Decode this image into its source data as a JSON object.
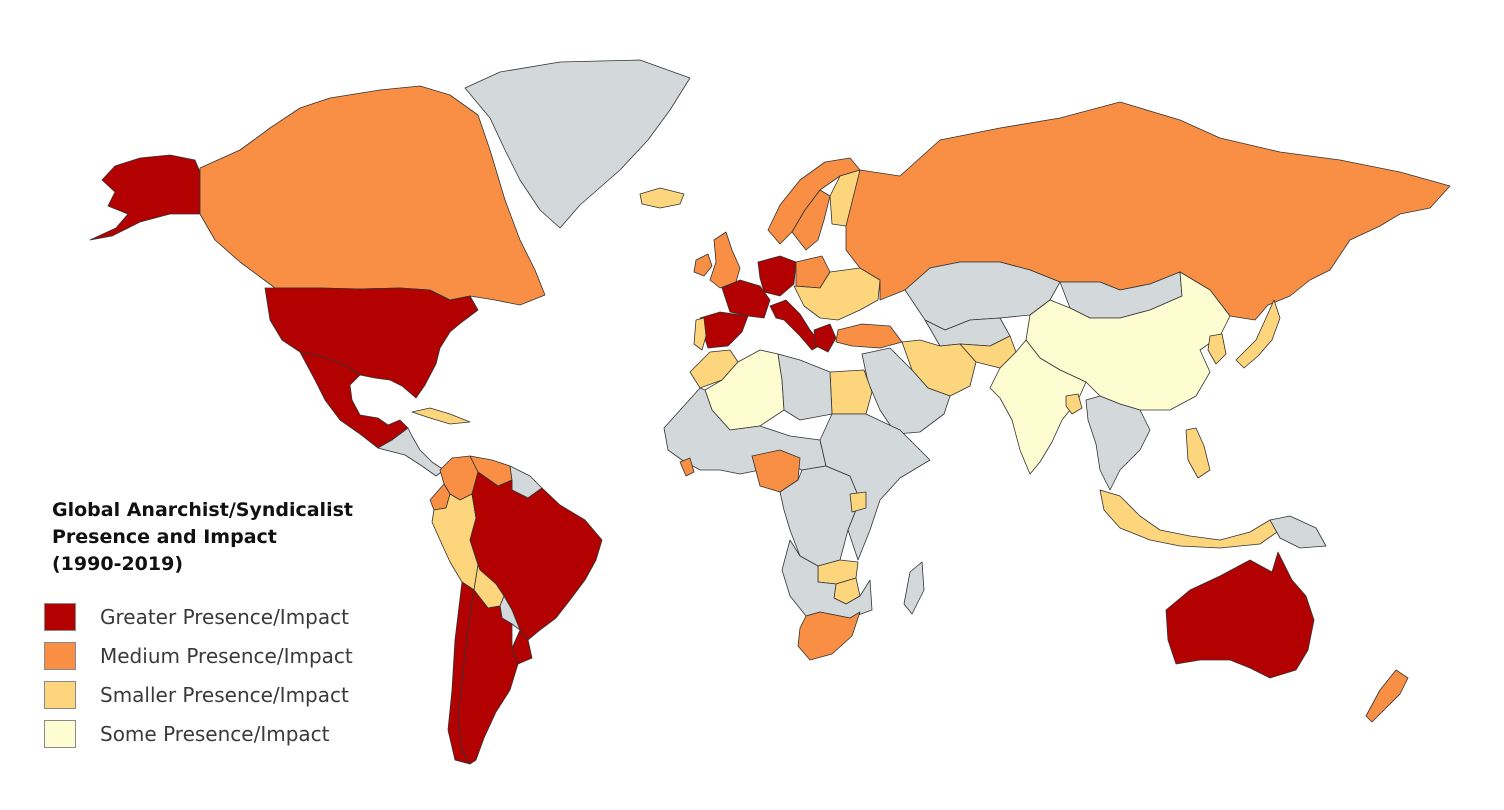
{
  "title": {
    "lines": [
      "Global Anarchist/Syndicalist",
      "Presence and Impact",
      "(1990-2019)"
    ]
  },
  "legend": [
    {
      "label": "Greater Presence/Impact",
      "level": "greater",
      "color": "#b30000"
    },
    {
      "label": "Medium Presence/Impact",
      "level": "medium",
      "color": "#f98f45"
    },
    {
      "label": "Smaller Presence/Impact",
      "level": "smaller",
      "color": "#fdd57c"
    },
    {
      "label": "Some Presence/Impact",
      "level": "some",
      "color": "#fefdd2"
    }
  ],
  "no_data_color": "#d3d8db",
  "regions": [
    {
      "name": "Alaska",
      "level": "greater"
    },
    {
      "name": "Canada",
      "level": "medium"
    },
    {
      "name": "Greenland",
      "level": "none"
    },
    {
      "name": "United States",
      "level": "greater"
    },
    {
      "name": "Mexico",
      "level": "greater"
    },
    {
      "name": "Central America",
      "level": "none"
    },
    {
      "name": "Cuba",
      "level": "smaller"
    },
    {
      "name": "Colombia",
      "level": "medium"
    },
    {
      "name": "Venezuela",
      "level": "medium"
    },
    {
      "name": "Guianas",
      "level": "none"
    },
    {
      "name": "Ecuador",
      "level": "medium"
    },
    {
      "name": "Peru",
      "level": "smaller"
    },
    {
      "name": "Brazil",
      "level": "greater"
    },
    {
      "name": "Bolivia",
      "level": "smaller"
    },
    {
      "name": "Paraguay",
      "level": "none"
    },
    {
      "name": "Uruguay",
      "level": "greater"
    },
    {
      "name": "Chile",
      "level": "greater"
    },
    {
      "name": "Argentina",
      "level": "greater"
    },
    {
      "name": "Iceland",
      "level": "smaller"
    },
    {
      "name": "Ireland",
      "level": "medium"
    },
    {
      "name": "United Kingdom",
      "level": "medium"
    },
    {
      "name": "Norway",
      "level": "medium"
    },
    {
      "name": "Sweden",
      "level": "medium"
    },
    {
      "name": "Finland",
      "level": "smaller"
    },
    {
      "name": "Spain",
      "level": "greater"
    },
    {
      "name": "Portugal",
      "level": "smaller"
    },
    {
      "name": "France",
      "level": "greater"
    },
    {
      "name": "Germany",
      "level": "greater"
    },
    {
      "name": "Italy",
      "level": "greater"
    },
    {
      "name": "Poland",
      "level": "medium"
    },
    {
      "name": "Eastern Europe",
      "level": "smaller"
    },
    {
      "name": "Greece",
      "level": "greater"
    },
    {
      "name": "Turkey",
      "level": "medium"
    },
    {
      "name": "Russia",
      "level": "medium"
    },
    {
      "name": "Kazakhstan",
      "level": "none"
    },
    {
      "name": "Central Asia",
      "level": "none"
    },
    {
      "name": "Mongolia",
      "level": "none"
    },
    {
      "name": "China",
      "level": "some"
    },
    {
      "name": "Korea",
      "level": "smaller"
    },
    {
      "name": "Japan",
      "level": "smaller"
    },
    {
      "name": "Iran",
      "level": "smaller"
    },
    {
      "name": "Afghanistan",
      "level": "smaller"
    },
    {
      "name": "Arabia",
      "level": "none"
    },
    {
      "name": "India",
      "level": "some"
    },
    {
      "name": "Bangladesh",
      "level": "smaller"
    },
    {
      "name": "Southeast Asia",
      "level": "none"
    },
    {
      "name": "Philippines",
      "level": "smaller"
    },
    {
      "name": "Indonesia",
      "level": "smaller"
    },
    {
      "name": "Papua New Guinea",
      "level": "none"
    },
    {
      "name": "Morocco",
      "level": "smaller"
    },
    {
      "name": "Algeria",
      "level": "some"
    },
    {
      "name": "Egypt",
      "level": "smaller"
    },
    {
      "name": "North Africa",
      "level": "none"
    },
    {
      "name": "West Africa",
      "level": "none"
    },
    {
      "name": "Nigeria",
      "level": "medium"
    },
    {
      "name": "Sierra Leone",
      "level": "medium"
    },
    {
      "name": "Central Africa",
      "level": "none"
    },
    {
      "name": "East Africa",
      "level": "none"
    },
    {
      "name": "Uganda",
      "level": "smaller"
    },
    {
      "name": "Zambia",
      "level": "smaller"
    },
    {
      "name": "Zimbabwe",
      "level": "smaller"
    },
    {
      "name": "Southern Africa",
      "level": "none"
    },
    {
      "name": "South Africa",
      "level": "medium"
    },
    {
      "name": "Madagascar",
      "level": "none"
    },
    {
      "name": "Australia",
      "level": "greater"
    },
    {
      "name": "New Zealand",
      "level": "medium"
    }
  ]
}
